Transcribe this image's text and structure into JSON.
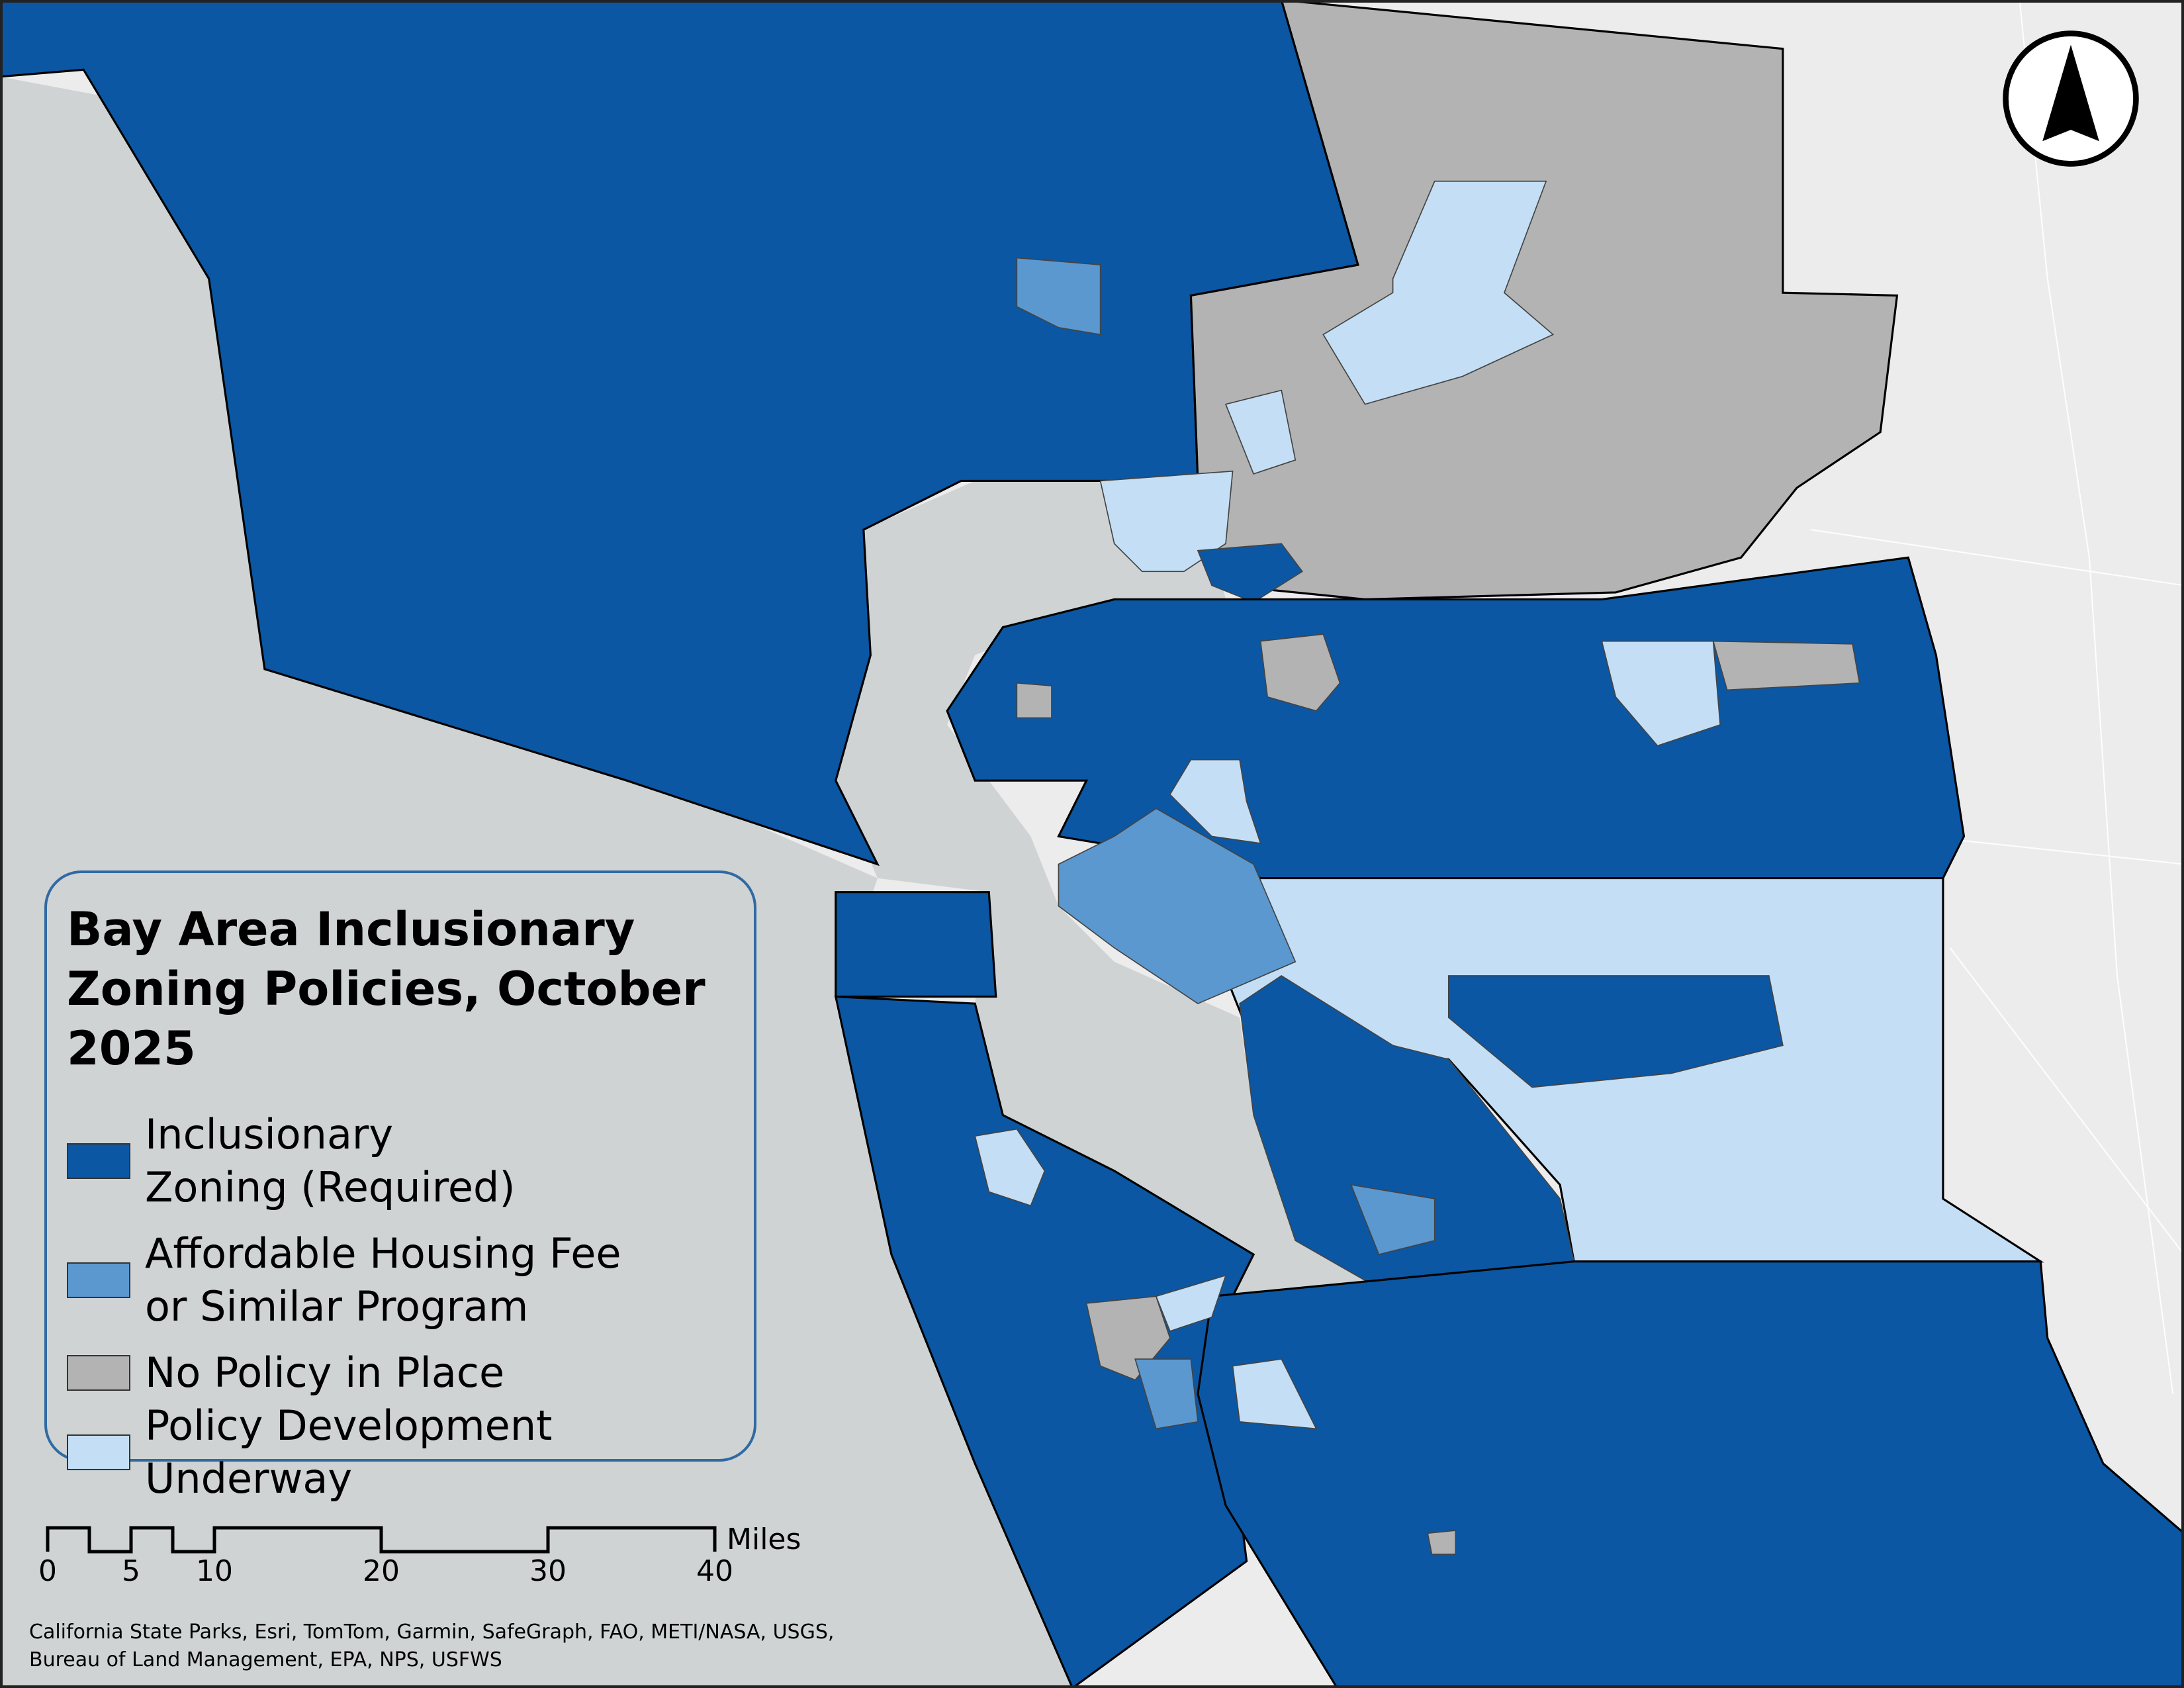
{
  "legend": {
    "title": "Bay Area Inclusionary Zoning Policies, October 2025",
    "items": [
      {
        "key": "iz",
        "label": "Inclusionary Zoning (Required)",
        "color": "#0b57a3"
      },
      {
        "key": "fee",
        "label": "Affordable Housing Fee or Similar Program",
        "color": "#5b98cf"
      },
      {
        "key": "none",
        "label": "No Policy in Place",
        "color": "#b3b3b3"
      },
      {
        "key": "dev",
        "label": "Policy Development Underway",
        "color": "#c4dff5"
      }
    ]
  },
  "colors": {
    "water": "#d0d3d4",
    "basemap": "#ececec",
    "boundary": "#000000",
    "legend_border": "#2f6aa3"
  },
  "scale_bar": {
    "unit": "Miles",
    "ticks": [
      "0",
      "5",
      "10",
      "20",
      "30",
      "40"
    ]
  },
  "north_arrow": {
    "icon": "north-arrow-icon"
  },
  "attribution": [
    "California State Parks, Esri, TomTom, Garmin, SafeGraph, FAO, METI/NASA, USGS,",
    "Bureau of Land Management, EPA, NPS, USFWS"
  ]
}
